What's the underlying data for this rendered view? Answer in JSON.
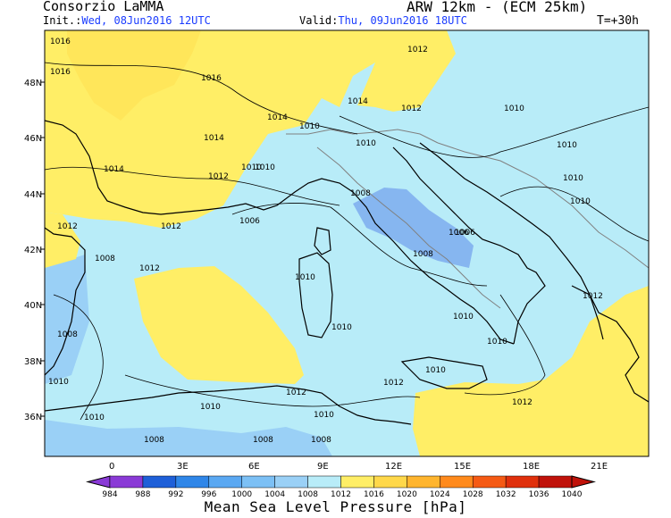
{
  "header": {
    "brand": "Consorzio LaMMA",
    "model": "ARW 12km - (ECM 25km)",
    "init_label": "Init.:",
    "init_value": "Wed, 08Jun2016 12UTC",
    "valid_label": "Valid:",
    "valid_value": "Thu, 09Jun2016 18UTC",
    "forecast_step": "T=+30h"
  },
  "map": {
    "lat_ticks": [
      "48N",
      "46N",
      "44N",
      "42N",
      "40N",
      "38N",
      "36N"
    ],
    "lon_ticks": [
      "0",
      "3E",
      "6E",
      "9E",
      "12E",
      "15E",
      "18E",
      "21E"
    ],
    "isobar_labels": [
      "1016",
      "1016",
      "1016",
      "1014",
      "1014",
      "1012",
      "1012",
      "1014",
      "1014",
      "1012",
      "1010",
      "1010",
      "1010",
      "1010",
      "1008",
      "1008",
      "1006",
      "1006",
      "1012",
      "1012",
      "1010",
      "1008",
      "1012",
      "1010",
      "1010",
      "1010",
      "1012",
      "1008",
      "1010",
      "1010",
      "1010",
      "1010",
      "1010",
      "1008",
      "1008",
      "1008",
      "1010",
      "1012",
      "1012",
      "1010",
      "1012",
      "1010",
      "1010",
      "1006"
    ],
    "colors": {
      "yellow": "#ffee66",
      "light_blue": "#b8ecf8",
      "mid_blue": "#9ad0f6",
      "deep_blue": "#86b6f0",
      "land_line": "#000000",
      "border_line": "#808080"
    }
  },
  "colorbar": {
    "values": [
      "984",
      "988",
      "992",
      "996",
      "1000",
      "1004",
      "1008",
      "1012",
      "1016",
      "1020",
      "1024",
      "1028",
      "1032",
      "1036",
      "1040"
    ],
    "colors": [
      "#8a3ad6",
      "#1e5fd8",
      "#2f86e8",
      "#5aa8f2",
      "#7cc0f5",
      "#9ad0f6",
      "#b8ecf8",
      "#ffee66",
      "#ffd84a",
      "#ffb52e",
      "#ff8a1c",
      "#f55a14",
      "#e0300c",
      "#c0120a"
    ],
    "title": "Mean Sea Level Pressure [hPa]"
  }
}
